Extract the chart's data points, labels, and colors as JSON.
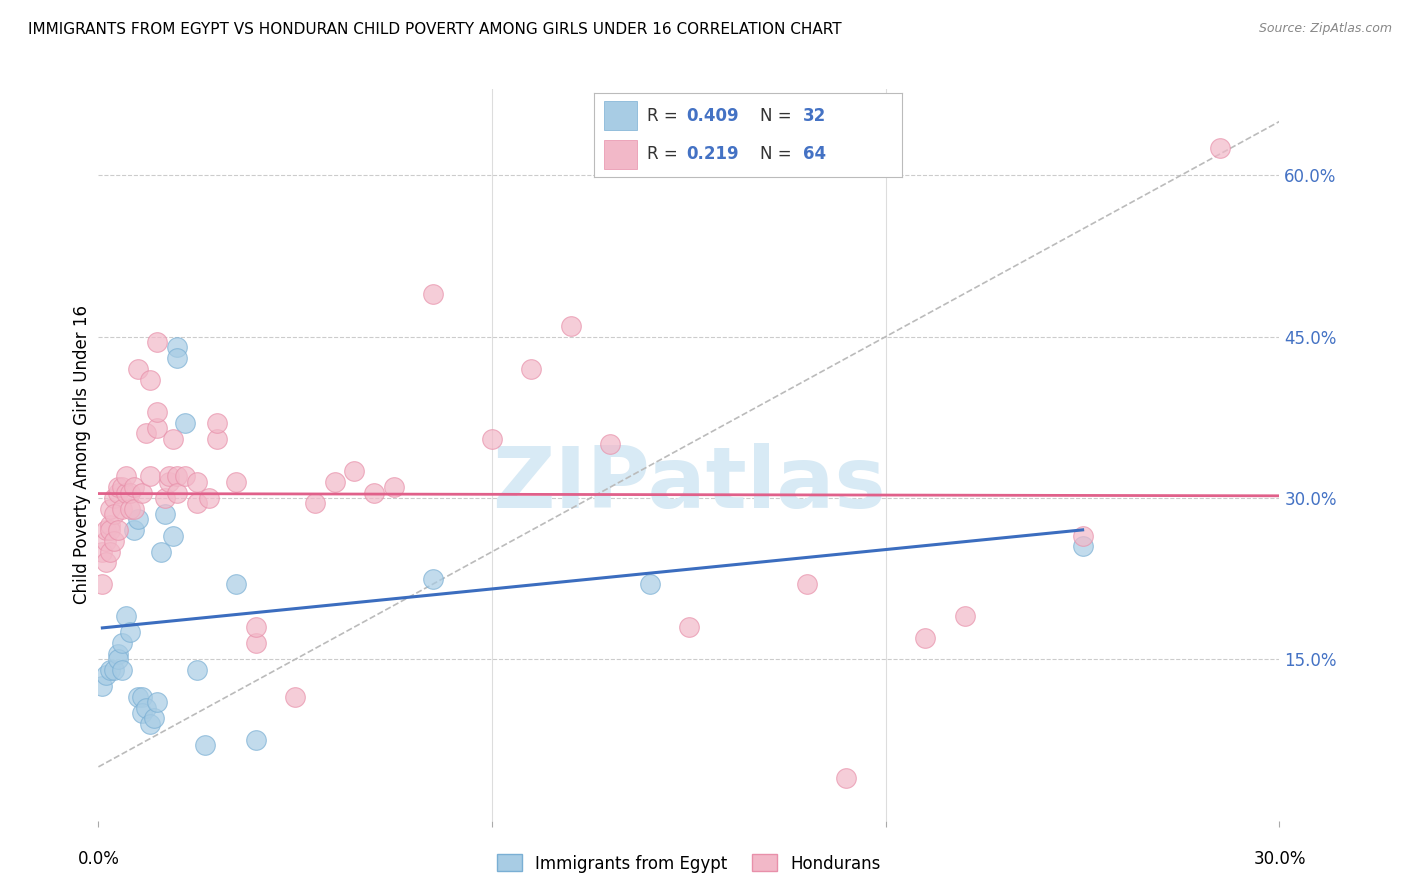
{
  "title": "IMMIGRANTS FROM EGYPT VS HONDURAN CHILD POVERTY AMONG GIRLS UNDER 16 CORRELATION CHART",
  "source": "Source: ZipAtlas.com",
  "ylabel": "Child Poverty Among Girls Under 16",
  "ytick_values": [
    0.15,
    0.3,
    0.45,
    0.6
  ],
  "xlim": [
    0.0,
    0.3
  ],
  "ylim": [
    0.0,
    0.68
  ],
  "legend_blue_label": "Immigrants from Egypt",
  "legend_pink_label": "Hondurans",
  "R_blue": "0.409",
  "N_blue": "32",
  "R_pink": "0.219",
  "N_pink": "64",
  "blue_color": "#a8cce4",
  "pink_color": "#f2b8c8",
  "blue_edge_color": "#7aafd4",
  "pink_edge_color": "#e890aa",
  "blue_line_color": "#3b6dbf",
  "pink_line_color": "#e0608a",
  "dashed_line_color": "#bbbbbb",
  "watermark": "ZIPatlas",
  "watermark_color": "#d8eaf5",
  "blue_scatter": [
    [
      0.001,
      0.125
    ],
    [
      0.002,
      0.135
    ],
    [
      0.003,
      0.14
    ],
    [
      0.004,
      0.14
    ],
    [
      0.005,
      0.155
    ],
    [
      0.005,
      0.15
    ],
    [
      0.006,
      0.14
    ],
    [
      0.006,
      0.165
    ],
    [
      0.007,
      0.19
    ],
    [
      0.008,
      0.175
    ],
    [
      0.009,
      0.27
    ],
    [
      0.01,
      0.28
    ],
    [
      0.01,
      0.115
    ],
    [
      0.011,
      0.115
    ],
    [
      0.011,
      0.1
    ],
    [
      0.012,
      0.105
    ],
    [
      0.013,
      0.09
    ],
    [
      0.014,
      0.095
    ],
    [
      0.015,
      0.11
    ],
    [
      0.016,
      0.25
    ],
    [
      0.017,
      0.285
    ],
    [
      0.019,
      0.265
    ],
    [
      0.02,
      0.44
    ],
    [
      0.02,
      0.43
    ],
    [
      0.022,
      0.37
    ],
    [
      0.025,
      0.14
    ],
    [
      0.027,
      0.07
    ],
    [
      0.035,
      0.22
    ],
    [
      0.04,
      0.075
    ],
    [
      0.085,
      0.225
    ],
    [
      0.14,
      0.22
    ],
    [
      0.25,
      0.255
    ]
  ],
  "pink_scatter": [
    [
      0.001,
      0.22
    ],
    [
      0.001,
      0.25
    ],
    [
      0.002,
      0.24
    ],
    [
      0.002,
      0.26
    ],
    [
      0.002,
      0.27
    ],
    [
      0.003,
      0.25
    ],
    [
      0.003,
      0.275
    ],
    [
      0.003,
      0.27
    ],
    [
      0.003,
      0.29
    ],
    [
      0.004,
      0.26
    ],
    [
      0.004,
      0.3
    ],
    [
      0.004,
      0.285
    ],
    [
      0.005,
      0.27
    ],
    [
      0.005,
      0.305
    ],
    [
      0.005,
      0.31
    ],
    [
      0.006,
      0.29
    ],
    [
      0.006,
      0.31
    ],
    [
      0.007,
      0.305
    ],
    [
      0.007,
      0.32
    ],
    [
      0.008,
      0.29
    ],
    [
      0.008,
      0.305
    ],
    [
      0.009,
      0.29
    ],
    [
      0.009,
      0.31
    ],
    [
      0.01,
      0.42
    ],
    [
      0.011,
      0.305
    ],
    [
      0.012,
      0.36
    ],
    [
      0.013,
      0.32
    ],
    [
      0.013,
      0.41
    ],
    [
      0.015,
      0.365
    ],
    [
      0.015,
      0.38
    ],
    [
      0.015,
      0.445
    ],
    [
      0.017,
      0.3
    ],
    [
      0.018,
      0.315
    ],
    [
      0.018,
      0.32
    ],
    [
      0.019,
      0.355
    ],
    [
      0.02,
      0.32
    ],
    [
      0.02,
      0.305
    ],
    [
      0.022,
      0.32
    ],
    [
      0.025,
      0.295
    ],
    [
      0.025,
      0.315
    ],
    [
      0.028,
      0.3
    ],
    [
      0.03,
      0.355
    ],
    [
      0.03,
      0.37
    ],
    [
      0.035,
      0.315
    ],
    [
      0.04,
      0.165
    ],
    [
      0.04,
      0.18
    ],
    [
      0.05,
      0.115
    ],
    [
      0.055,
      0.295
    ],
    [
      0.06,
      0.315
    ],
    [
      0.065,
      0.325
    ],
    [
      0.07,
      0.305
    ],
    [
      0.075,
      0.31
    ],
    [
      0.085,
      0.49
    ],
    [
      0.1,
      0.355
    ],
    [
      0.11,
      0.42
    ],
    [
      0.12,
      0.46
    ],
    [
      0.13,
      0.35
    ],
    [
      0.15,
      0.18
    ],
    [
      0.18,
      0.22
    ],
    [
      0.19,
      0.04
    ],
    [
      0.21,
      0.17
    ],
    [
      0.22,
      0.19
    ],
    [
      0.25,
      0.265
    ],
    [
      0.285,
      0.625
    ]
  ],
  "background_color": "#ffffff",
  "grid_color": "#cccccc"
}
